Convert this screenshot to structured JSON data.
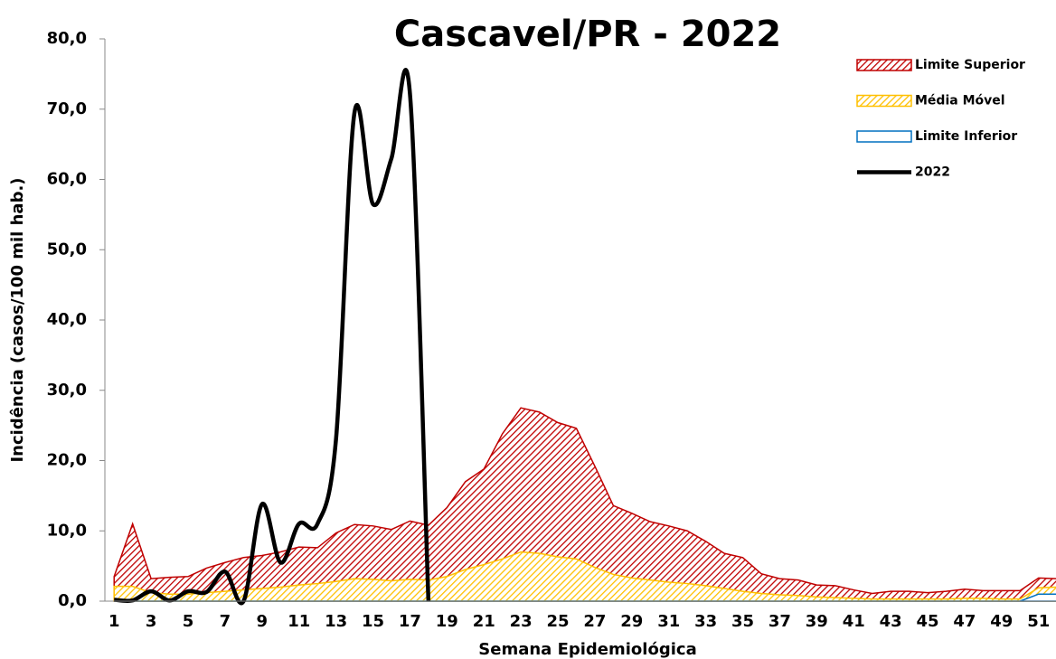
{
  "chart_data": {
    "type": "area",
    "title": "Cascavel/PR - 2022",
    "x_label": "Semana Epidemiológica",
    "y_label": "Incidência (casos/100 mil hab.)",
    "categories": [
      1,
      null,
      3,
      null,
      5,
      null,
      7,
      null,
      9,
      null,
      11,
      null,
      13,
      null,
      15,
      null,
      17,
      null,
      19,
      null,
      21,
      null,
      23,
      null,
      25,
      null,
      27,
      null,
      29,
      null,
      31,
      null,
      33,
      null,
      35,
      null,
      37,
      null,
      39,
      null,
      41,
      null,
      43,
      null,
      45,
      null,
      47,
      null,
      49,
      null,
      51,
      null
    ],
    "ylim": [
      0,
      80
    ],
    "yticks": [
      {
        "value": 0,
        "label": "0,0"
      },
      {
        "value": 10,
        "label": "10,0"
      },
      {
        "value": 20,
        "label": "20,0"
      },
      {
        "value": 30,
        "label": "30,0"
      },
      {
        "value": 40,
        "label": "40,0"
      },
      {
        "value": 50,
        "label": "50,0"
      },
      {
        "value": 60,
        "label": "60,0"
      },
      {
        "value": 70,
        "label": "70,0"
      },
      {
        "value": 80,
        "label": "80,0"
      }
    ],
    "grid": false,
    "legend": "upper right",
    "series": [
      {
        "name": "Limite Superior",
        "type": "area",
        "color": "#c00000",
        "values": [
          3.5,
          11.0,
          3.2,
          3.4,
          3.5,
          4.7,
          5.5,
          6.2,
          6.5,
          7.0,
          7.7,
          7.6,
          9.7,
          10.9,
          10.7,
          10.2,
          11.4,
          10.8,
          13.3,
          17.0,
          18.8,
          23.8,
          27.5,
          26.9,
          25.4,
          24.6,
          19.2,
          13.6,
          12.5,
          11.3,
          10.7,
          10.0,
          8.5,
          6.8,
          6.2,
          3.9,
          3.2,
          3.0,
          2.3,
          2.2,
          1.6,
          1.1,
          1.4,
          1.4,
          1.2,
          1.4,
          1.7,
          1.5,
          1.5,
          1.5,
          3.3,
          3.2
        ]
      },
      {
        "name": "Média Móvel",
        "type": "area",
        "color": "#ffc000",
        "values": [
          2.1,
          2.1,
          1.2,
          1.0,
          1.0,
          1.2,
          1.4,
          1.6,
          1.8,
          2.0,
          2.3,
          2.5,
          2.8,
          3.2,
          3.1,
          2.9,
          3.1,
          3.0,
          3.5,
          4.5,
          5.2,
          6.0,
          7.0,
          6.8,
          6.3,
          6.0,
          4.8,
          3.8,
          3.3,
          3.0,
          2.7,
          2.5,
          2.2,
          1.8,
          1.4,
          1.1,
          0.9,
          0.8,
          0.6,
          0.5,
          0.4,
          0.3,
          0.3,
          0.3,
          0.3,
          0.3,
          0.4,
          0.4,
          0.3,
          0.3,
          1.9,
          2.0
        ]
      },
      {
        "name": "Limite Inferior",
        "type": "area",
        "color": "#0070c0",
        "values": [
          0,
          0,
          0,
          0,
          0,
          0,
          0,
          0,
          0,
          0,
          0,
          0,
          0,
          0,
          0,
          0,
          0,
          0,
          0,
          0,
          0,
          0,
          0,
          0,
          0,
          0,
          0,
          0,
          0,
          0,
          0,
          0,
          0,
          0,
          0,
          0,
          0,
          0,
          0,
          0,
          0,
          0,
          0,
          0,
          0,
          0,
          0,
          0,
          0,
          0,
          1.0,
          1.0
        ]
      },
      {
        "name": "2022",
        "type": "line",
        "color": "#000000",
        "values": [
          0.2,
          0.1,
          1.4,
          0.1,
          1.4,
          1.3,
          4.2,
          0.0,
          13.8,
          5.5,
          11.0,
          11.0,
          23.0,
          69.5,
          56.5,
          63.0,
          72.2,
          0.0,
          null,
          null,
          null,
          null,
          null,
          null,
          null,
          null,
          null,
          null,
          null,
          null,
          null,
          null,
          null,
          null,
          null,
          null,
          null,
          null,
          null,
          null,
          null,
          null,
          null,
          null,
          null,
          null,
          null,
          null,
          null,
          null,
          null,
          null
        ]
      }
    ]
  }
}
